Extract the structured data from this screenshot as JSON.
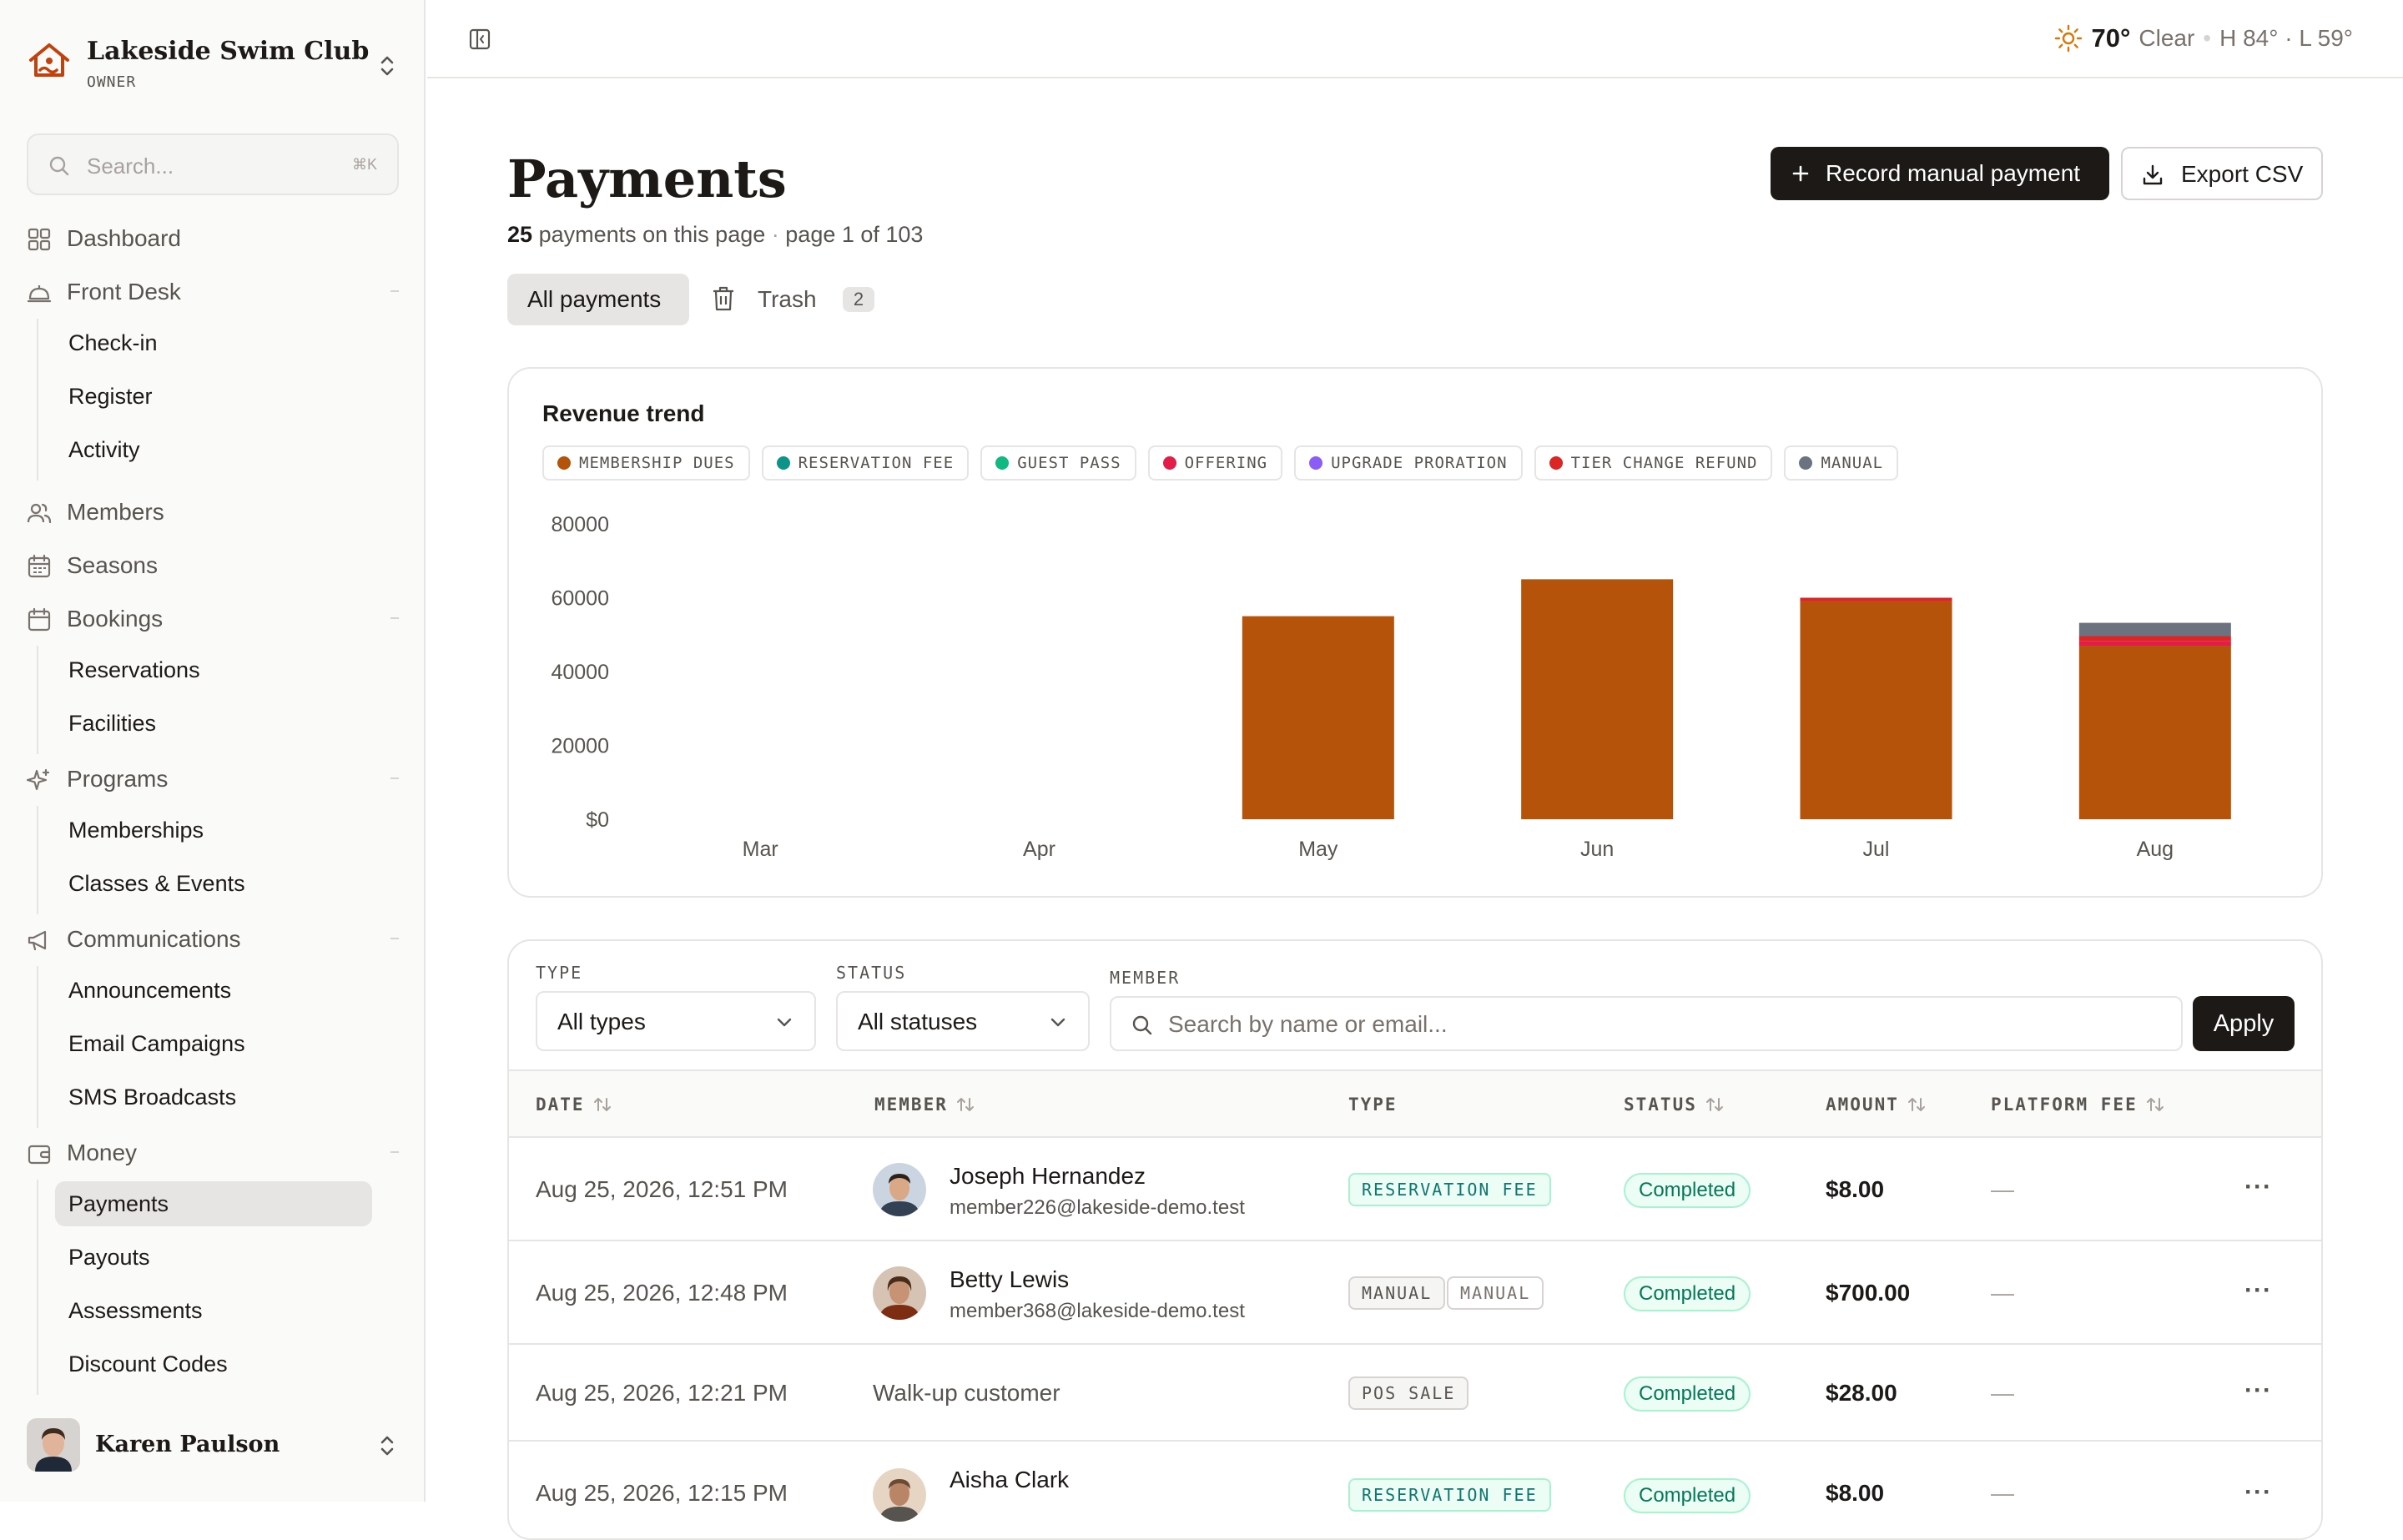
{
  "sidebar": {
    "club_name": "Lakeside Swim Club",
    "club_role": "OWNER",
    "search_placeholder": "Search...",
    "search_shortcut": "⌘K",
    "sections": {
      "dashboard": "Dashboard",
      "front_desk": "Front Desk",
      "members": "Members",
      "seasons": "Seasons",
      "bookings": "Bookings",
      "programs": "Programs",
      "communications": "Communications",
      "money": "Money"
    },
    "items": {
      "check_in": "Check-in",
      "register": "Register",
      "activity": "Activity",
      "reservations": "Reservations",
      "facilities": "Facilities",
      "memberships": "Memberships",
      "classes_events": "Classes & Events",
      "announcements": "Announcements",
      "email_campaigns": "Email Campaigns",
      "sms_broadcasts": "SMS Broadcasts",
      "payments": "Payments",
      "payouts": "Payouts",
      "assessments": "Assessments",
      "discount_codes": "Discount Codes"
    },
    "user_name": "Karen Paulson"
  },
  "weather": {
    "temp": "70°",
    "condition": "Clear",
    "sep": "•",
    "hilo": "H 84° · L 59°"
  },
  "header": {
    "title": "Payments",
    "count": "25",
    "count_text": "payments on this page",
    "sep": "·",
    "page_text": "page 1 of 103",
    "record_button": "Record manual payment",
    "export_button": "Export CSV"
  },
  "tabs": {
    "all": "All payments",
    "trash": "Trash",
    "trash_count": "2"
  },
  "chart_data": {
    "type": "bar",
    "stacked": true,
    "title": "Revenue trend",
    "categories": [
      "Mar",
      "Apr",
      "May",
      "Jun",
      "Jul",
      "Aug"
    ],
    "y_ticks": [
      "$0",
      "20000",
      "40000",
      "60000",
      "80000"
    ],
    "ylim": [
      0,
      80000
    ],
    "grid": false,
    "legend_position": "top",
    "series": [
      {
        "name": "MEMBERSHIP DUES",
        "color": "#b45309",
        "values": [
          0,
          0,
          55000,
          65000,
          59000,
          47000
        ]
      },
      {
        "name": "RESERVATION FEE",
        "color": "#0d9488",
        "values": [
          0,
          0,
          0,
          0,
          0,
          0
        ]
      },
      {
        "name": "GUEST PASS",
        "color": "#10b981",
        "values": [
          0,
          0,
          0,
          0,
          0,
          0
        ]
      },
      {
        "name": "OFFERING",
        "color": "#e11d48",
        "values": [
          0,
          0,
          0,
          0,
          0,
          1300
        ]
      },
      {
        "name": "UPGRADE PRORATION",
        "color": "#8b5cf6",
        "values": [
          0,
          0,
          0,
          0,
          0,
          0
        ]
      },
      {
        "name": "TIER CHANGE REFUND",
        "color": "#dc2626",
        "values": [
          0,
          0,
          0,
          0,
          1000,
          1300
        ]
      },
      {
        "name": "MANUAL",
        "color": "#6b7280",
        "values": [
          0,
          0,
          0,
          0,
          0,
          3600
        ]
      }
    ]
  },
  "filters": {
    "type_label": "TYPE",
    "type_value": "All types",
    "status_label": "STATUS",
    "status_value": "All statuses",
    "member_label": "MEMBER",
    "member_placeholder": "Search by name or email...",
    "apply": "Apply"
  },
  "table": {
    "headers": {
      "date": "DATE",
      "member": "MEMBER",
      "type": "TYPE",
      "status": "STATUS",
      "amount": "AMOUNT",
      "platform_fee": "PLATFORM FEE"
    },
    "rows": [
      {
        "date": "Aug 25, 2026, 12:51 PM",
        "name": "Joseph Hernandez",
        "email": "member226@lakeside-demo.test",
        "type": "RESERVATION FEE",
        "status": "Completed",
        "amount": "$8.00",
        "fee": "—",
        "more": "···"
      },
      {
        "date": "Aug 25, 2026, 12:48 PM",
        "name": "Betty Lewis",
        "email": "member368@lakeside-demo.test",
        "type": "MANUAL",
        "type2": "MANUAL",
        "status": "Completed",
        "amount": "$700.00",
        "fee": "—",
        "more": "···"
      },
      {
        "date": "Aug 25, 2026, 12:21 PM",
        "walkup": "Walk-up customer",
        "type": "POS SALE",
        "status": "Completed",
        "amount": "$28.00",
        "fee": "—",
        "more": "···"
      },
      {
        "date": "Aug 25, 2026, 12:15 PM",
        "name": "Aisha Clark",
        "type": "RESERVATION FEE",
        "status": "Completed",
        "amount": "$8.00",
        "fee": "—",
        "more": "···"
      }
    ]
  }
}
